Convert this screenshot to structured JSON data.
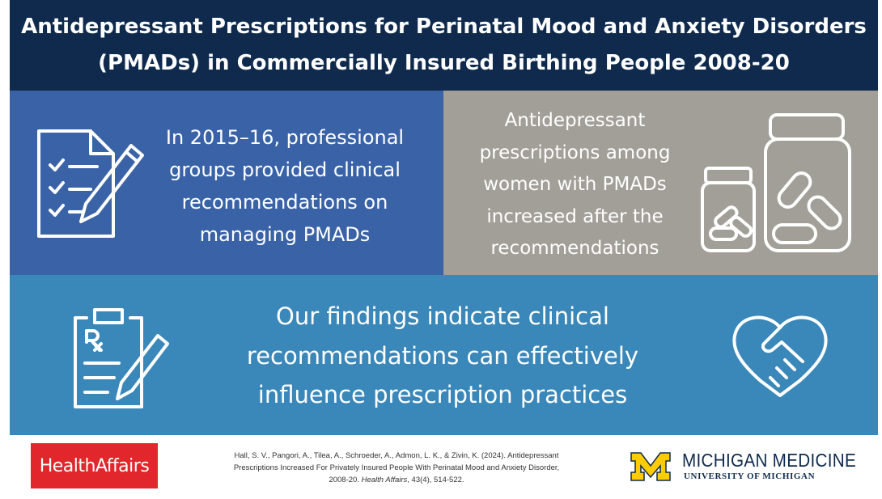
{
  "header": {
    "title_lines": [
      "Antidepressant Prescriptions for Perinatal Mood and Anxiety Disorders",
      "(PMADs) in Commercially Insured Birthing People 2008-20"
    ]
  },
  "panels": [
    {
      "lines": [
        "In 2015–16, professional",
        "groups provided clinical",
        "recommendations on",
        "managing PMADs"
      ]
    },
    {
      "lines": [
        "Antidepressant",
        "prescriptions among",
        "women with PMADs",
        "increased after the",
        "recommendations"
      ]
    },
    {
      "lines": [
        "Our findings indicate clinical",
        "recommendations can effectively",
        "influence prescription practices"
      ]
    }
  ],
  "footer": {
    "publisher_logo": "HealthAffairs",
    "citation": {
      "line1": "Hall, S. V., Pangori, A., Tilea, A., Schroeder, A., Admon, L. K., & Zivin, K. (2024). Antidepressant",
      "line2": "Prescriptions Increased For Privately Insured People With Perinatal Mood and Anxiety Disorder,",
      "line3_start": "2008-20.",
      "journal": "Health Affairs",
      "line3_end": ", 43(4), 514-522."
    },
    "institution": {
      "name": "MICHIGAN MEDICINE",
      "subname": "UNIVERSITY OF MICHIGAN"
    }
  }
}
